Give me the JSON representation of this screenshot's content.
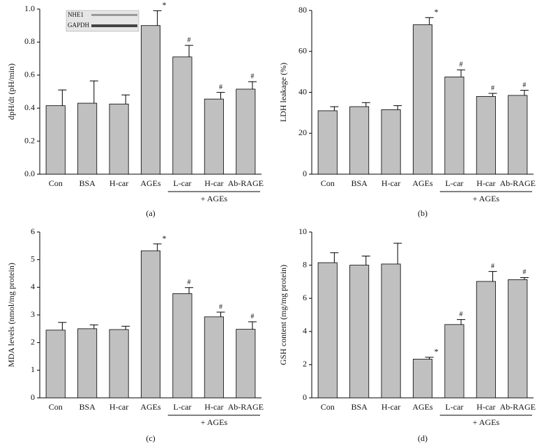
{
  "chart_data": [
    {
      "type": "bar",
      "panel": "(a)",
      "y_label": "dpH/dt (pH/min)",
      "categories": [
        "Con",
        "BSA",
        "H-car",
        "AGEs",
        "L-car",
        "H-car",
        "Ab-RAGE"
      ],
      "values": [
        0.415,
        0.43,
        0.425,
        0.9,
        0.71,
        0.455,
        0.515
      ],
      "errors": [
        0.095,
        0.135,
        0.055,
        0.09,
        0.07,
        0.04,
        0.045
      ],
      "annotations": [
        null,
        null,
        null,
        "*",
        "#",
        "#",
        "#"
      ],
      "group_label": "+ AGEs",
      "inset_labels": [
        "NHE1",
        "GAPDH"
      ],
      "color": "#c0c0c0",
      "ylim": [
        0,
        1
      ],
      "yticks": [
        {
          "value": 0,
          "label": "0.0"
        },
        0.2,
        0.4,
        0.6,
        0.8,
        {
          "value": 1,
          "label": "1.0"
        }
      ]
    },
    {
      "type": "bar",
      "panel": "(b)",
      "y_label": "LDH leakage (%)",
      "categories": [
        "Con",
        "BSA",
        "H-car",
        "AGEs",
        "L-car",
        "H-car",
        "Ab-RAGE"
      ],
      "values": [
        31,
        33,
        31.5,
        73,
        47.5,
        38,
        38.5
      ],
      "errors": [
        2,
        2,
        2,
        3.5,
        3.5,
        1.5,
        2.5
      ],
      "annotations": [
        null,
        null,
        null,
        "*",
        "#",
        "#",
        "#"
      ],
      "group_label": "+ AGEs",
      "color": "#c0c0c0",
      "ylim": [
        0,
        80
      ],
      "yticks": [
        0,
        20,
        40,
        60,
        80
      ]
    },
    {
      "type": "bar",
      "panel": "(c)",
      "y_label": "MDA levels (nmol/mg protein)",
      "categories": [
        "Con",
        "BSA",
        "H-car",
        "AGEs",
        "L-car",
        "H-car",
        "Ab-RAGE"
      ],
      "values": [
        2.45,
        2.5,
        2.47,
        5.32,
        3.77,
        2.93,
        2.48
      ],
      "errors": [
        0.28,
        0.14,
        0.12,
        0.25,
        0.22,
        0.17,
        0.27
      ],
      "annotations": [
        null,
        null,
        null,
        "*",
        "#",
        "#",
        "#"
      ],
      "group_label": "+ AGEs",
      "color": "#c0c0c0",
      "ylim": [
        0,
        6
      ],
      "yticks": [
        0,
        1,
        2,
        3,
        4,
        5,
        6
      ]
    },
    {
      "type": "bar",
      "panel": "(d)",
      "y_label": "GSH content (mg/mg protein)",
      "categories": [
        "Con",
        "BSA",
        "H-car",
        "AGEs",
        "L-car",
        "H-car",
        "Ab-RAGE"
      ],
      "values": [
        8.15,
        8.0,
        8.07,
        2.33,
        4.42,
        7.02,
        7.13
      ],
      "errors": [
        0.6,
        0.55,
        1.25,
        0.12,
        0.3,
        0.6,
        0.12
      ],
      "annotations": [
        null,
        null,
        null,
        "*",
        "#",
        "#",
        "#"
      ],
      "group_label": "+ AGEs",
      "color": "#c0c0c0",
      "ylim": [
        0,
        10
      ],
      "yticks": [
        0,
        2,
        4,
        6,
        8,
        10
      ]
    }
  ]
}
